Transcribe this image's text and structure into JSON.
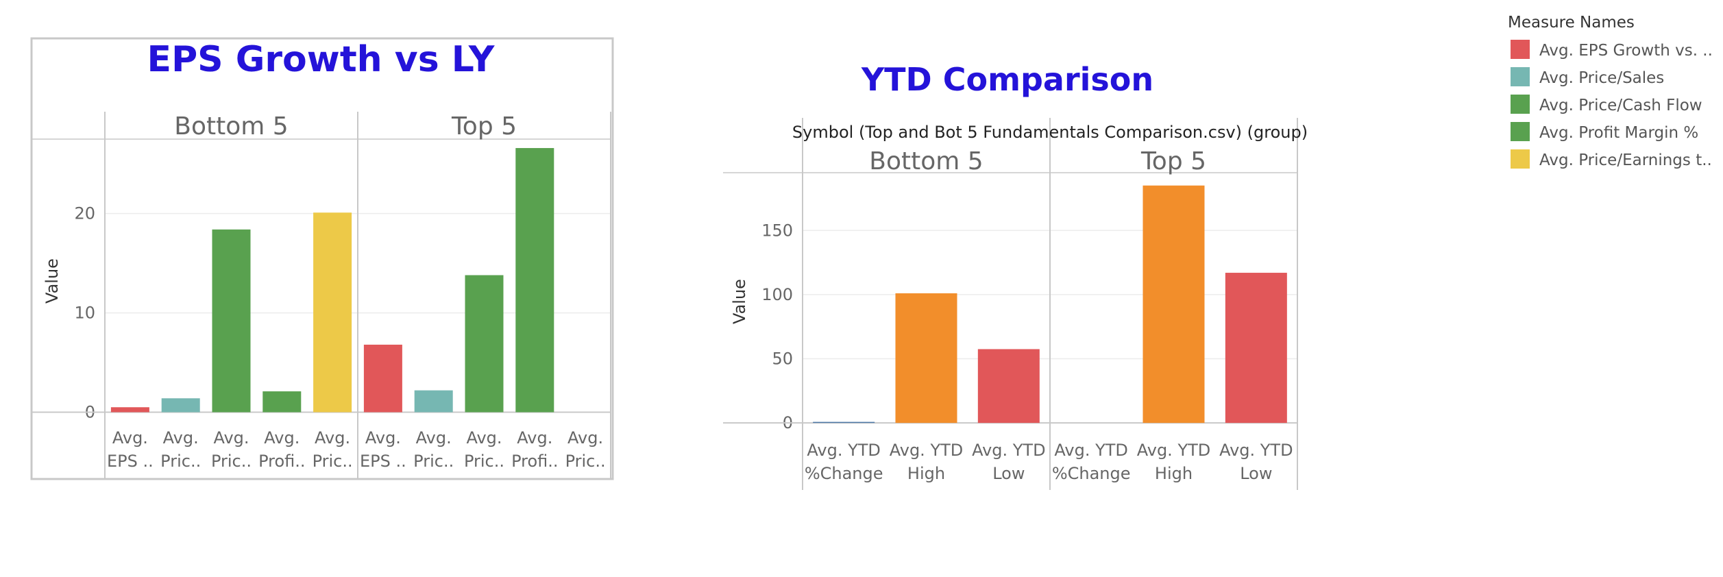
{
  "legend": {
    "title": "Measure Names",
    "items": [
      {
        "label": "Avg. EPS Growth vs. ..",
        "color": "#e15759"
      },
      {
        "label": "Avg. Price/Sales",
        "color": "#76b7b2"
      },
      {
        "label": "Avg. Price/Cash Flow",
        "color": "#59a14f"
      },
      {
        "label": "Avg. Profit Margin %",
        "color": "#59a14f"
      },
      {
        "label": "Avg. Price/Earnings t..",
        "color": "#edc948"
      }
    ]
  },
  "chart_data": [
    {
      "type": "bar",
      "title": "EPS Growth vs LY",
      "ylabel": "Value",
      "ylim": [
        -1,
        27.5
      ],
      "yticks": [
        "0",
        "10",
        "20"
      ],
      "grid": true,
      "panels": [
        {
          "name": "Bottom 5",
          "bars": [
            {
              "category": [
                "Avg.",
                "EPS .."
              ],
              "value": 0.5,
              "color": "#e15759"
            },
            {
              "category": [
                "Avg.",
                "Pric.."
              ],
              "value": 1.4,
              "color": "#76b7b2"
            },
            {
              "category": [
                "Avg.",
                "Pric.."
              ],
              "value": 18.4,
              "color": "#59a14f"
            },
            {
              "category": [
                "Avg.",
                "Profi.."
              ],
              "value": 2.1,
              "color": "#59a14f"
            },
            {
              "category": [
                "Avg.",
                "Pric.."
              ],
              "value": 20.1,
              "color": "#edc948"
            }
          ]
        },
        {
          "name": "Top 5",
          "bars": [
            {
              "category": [
                "Avg.",
                "EPS .."
              ],
              "value": 6.8,
              "color": "#e15759"
            },
            {
              "category": [
                "Avg.",
                "Pric.."
              ],
              "value": 2.2,
              "color": "#76b7b2"
            },
            {
              "category": [
                "Avg.",
                "Pric.."
              ],
              "value": 13.8,
              "color": "#59a14f"
            },
            {
              "category": [
                "Avg.",
                "Profi.."
              ],
              "value": 26.6,
              "color": "#59a14f"
            },
            {
              "category": [
                "Avg.",
                "Pric.."
              ],
              "value": 0,
              "color": "#edc948"
            }
          ]
        }
      ]
    },
    {
      "type": "bar",
      "title": "YTD Comparison",
      "header": "Symbol (Top and Bot 5  Fundamentals Comparison.csv) (group)",
      "ylabel": "Value",
      "ylim": [
        -9,
        195
      ],
      "yticks": [
        "0",
        "50",
        "100",
        "150"
      ],
      "grid": true,
      "panels": [
        {
          "name": "Bottom 5",
          "bars": [
            {
              "category": [
                "Avg. YTD",
                "%Change"
              ],
              "value": 0.8,
              "color": "#4e79a7"
            },
            {
              "category": [
                "Avg. YTD",
                "High"
              ],
              "value": 101,
              "color": "#f28e2b"
            },
            {
              "category": [
                "Avg. YTD",
                "Low"
              ],
              "value": 57.5,
              "color": "#e15759"
            }
          ]
        },
        {
          "name": "Top 5",
          "bars": [
            {
              "category": [
                "Avg. YTD",
                "%Change"
              ],
              "value": 0,
              "color": "#4e79a7"
            },
            {
              "category": [
                "Avg. YTD",
                "High"
              ],
              "value": 185,
              "color": "#f28e2b"
            },
            {
              "category": [
                "Avg. YTD",
                "Low"
              ],
              "value": 117,
              "color": "#e15759"
            }
          ]
        }
      ]
    }
  ]
}
